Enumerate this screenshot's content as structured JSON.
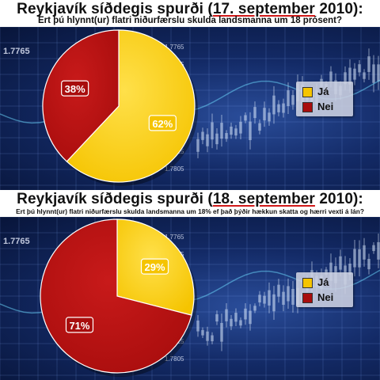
{
  "panels": [
    {
      "title_prefix": "Reykjavík síðdegis spurði (",
      "title_highlight": "17. september",
      "title_suffix": " 2010):",
      "subtitle": "Ert þú hlynnt(ur) flatri niðurfærslu skulda landsmanna um 18 prósent?"
    },
    {
      "title_prefix": "Reykjavík síðdegis spurði (",
      "title_highlight": "18. september",
      "title_suffix": " 2010):",
      "subtitle": "Ert þú hlynnt(ur) flatri niðurfærslu skulda landsmanna um 18% ef það þýðir hækkun skatta og hærri vexti á lán?"
    }
  ],
  "background_tickers": [
    "1.7765",
    "1.7865",
    "1.7855",
    "1.7845",
    "1.7835",
    "1.7825",
    "1.7815",
    "1.7805"
  ],
  "colors": {
    "ja": "#f5c400",
    "nei": "#a80d0d",
    "accent_underline": "#d01818"
  },
  "chart_data": [
    {
      "type": "pie",
      "categories": [
        "Já",
        "Nei"
      ],
      "values": [
        62,
        38
      ],
      "labels": [
        "62%",
        "38%"
      ],
      "colors": [
        "#f5c400",
        "#a80d0d"
      ],
      "legend": [
        "Já",
        "Nei"
      ],
      "legend_position": "right"
    },
    {
      "type": "pie",
      "categories": [
        "Já",
        "Nei"
      ],
      "values": [
        29,
        71
      ],
      "labels": [
        "29%",
        "71%"
      ],
      "colors": [
        "#f5c400",
        "#a80d0d"
      ],
      "legend": [
        "Já",
        "Nei"
      ],
      "legend_position": "right"
    }
  ]
}
